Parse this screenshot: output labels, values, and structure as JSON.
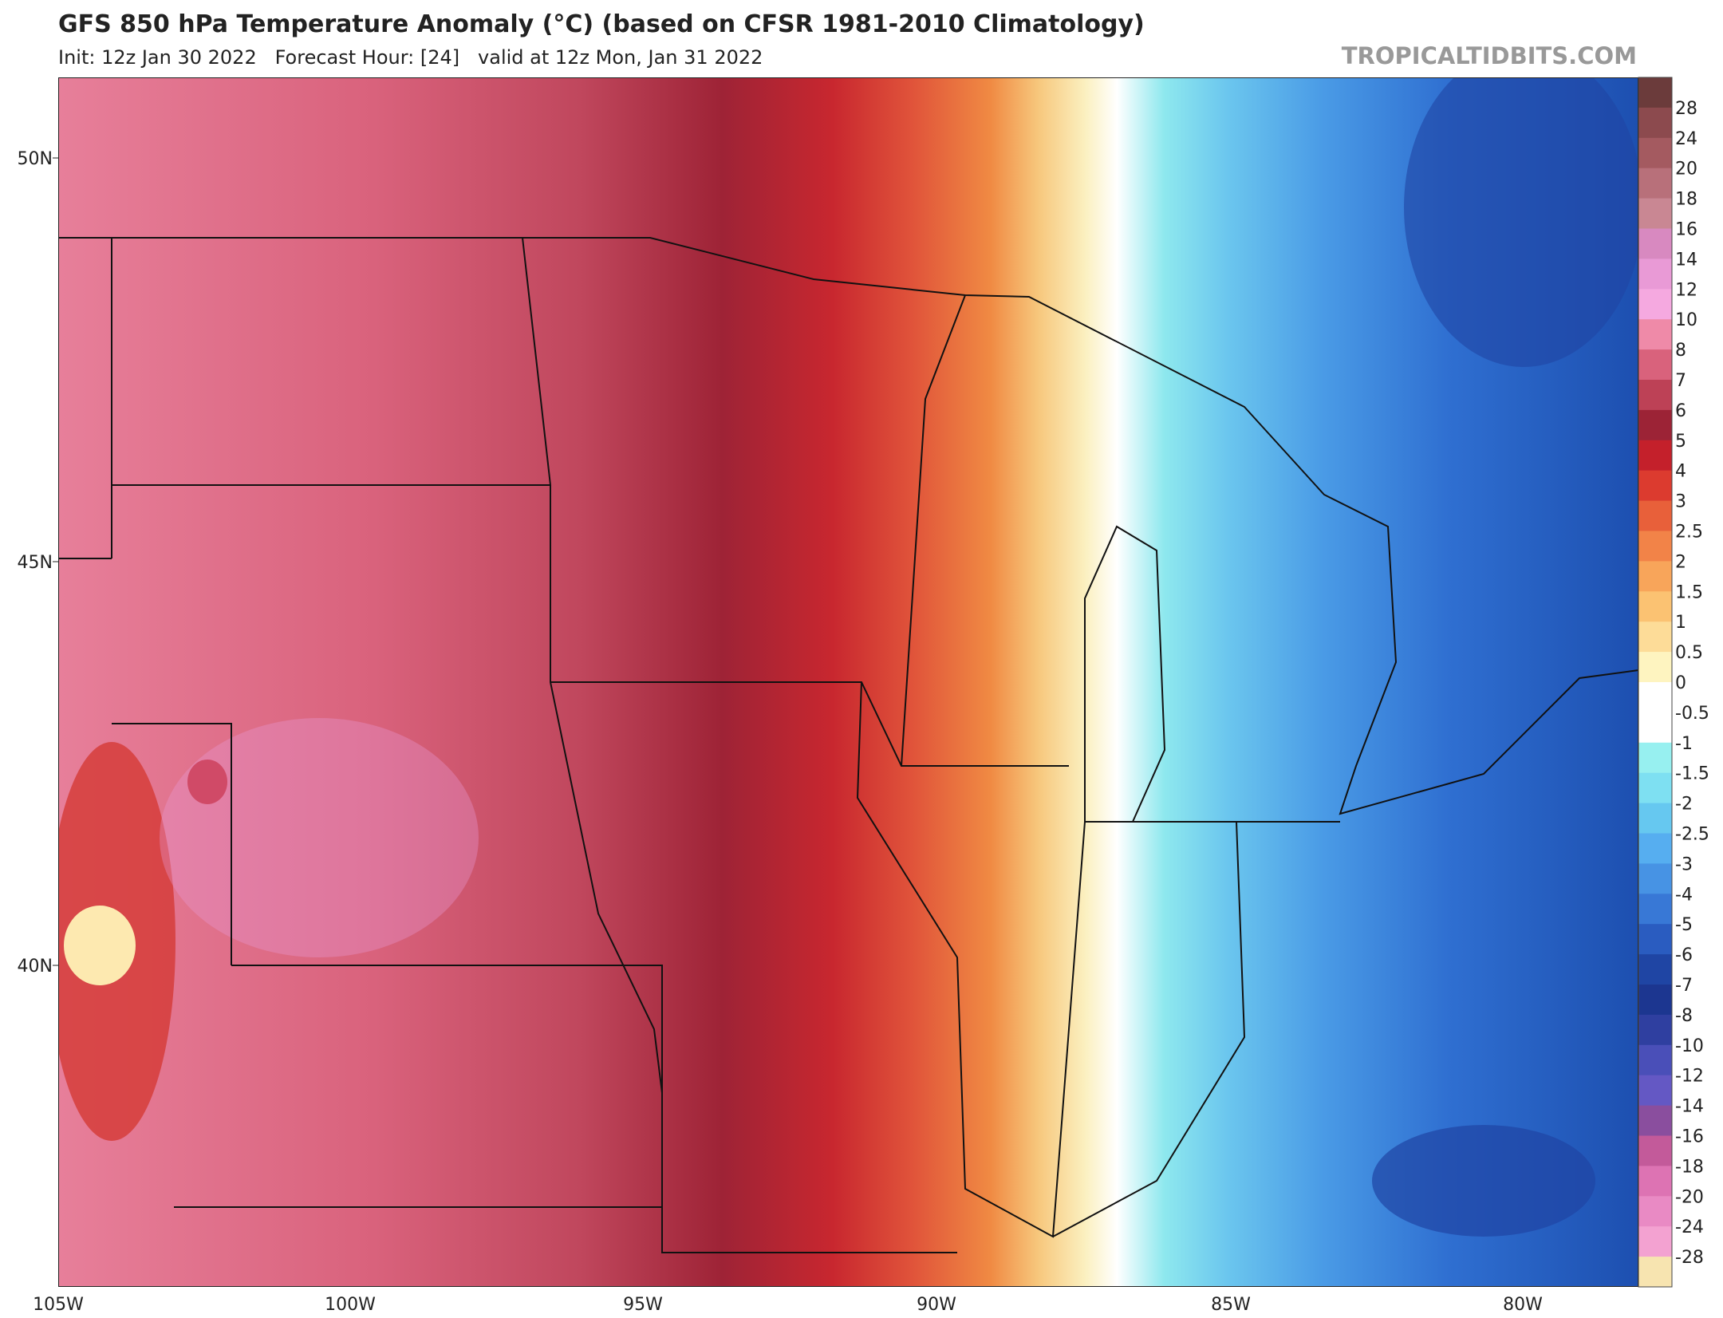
{
  "header": {
    "title": "GFS 850 hPa Temperature Anomaly (°C) (based on CFSR 1981-2010 Climatology)",
    "subtitle": "Init: 12z Jan 30 2022   Forecast Hour: [24]   valid at 12z Mon, Jan 31 2022",
    "watermark": "TROPICALTIDBITS.COM"
  },
  "map": {
    "lat_labels": [
      "50N",
      "45N",
      "40N"
    ],
    "lon_labels": [
      "105W",
      "100W",
      "95W",
      "90W",
      "85W",
      "80W"
    ]
  },
  "legend": {
    "labels": [
      "28",
      "24",
      "20",
      "18",
      "16",
      "14",
      "12",
      "10",
      "8",
      "7",
      "6",
      "5",
      "4",
      "3",
      "2.5",
      "2",
      "1.5",
      "1",
      "0.5",
      "0",
      "-0.5",
      "-1",
      "-1.5",
      "-2",
      "-2.5",
      "-3",
      "-4",
      "-5",
      "-6",
      "-7",
      "-8",
      "-10",
      "-12",
      "-14",
      "-16",
      "-18",
      "-20",
      "-24",
      "-28"
    ],
    "colors": [
      "#6b3b3b",
      "#8c4a4e",
      "#a45a60",
      "#b8707a",
      "#c98793",
      "#d889c0",
      "#e99ad6",
      "#f5a9e0",
      "#ef8aa8",
      "#d9627c",
      "#bd4156",
      "#9c2336",
      "#c4202b",
      "#dc3b2f",
      "#e8603a",
      "#f28348",
      "#f8a55a",
      "#fbc272",
      "#fddc98",
      "#fef4c0",
      "#ffffff",
      "#ffffff",
      "#97f0f0",
      "#7ee0f2",
      "#66c8f0",
      "#56aef0",
      "#4793e4",
      "#3878d6",
      "#2a5cc0",
      "#1f45a4",
      "#1c3690",
      "#2f3fa0",
      "#4a4fb8",
      "#6458c4",
      "#8a4e9e",
      "#c35a9a",
      "#dd73b3",
      "#e98ac4",
      "#f3a2d1",
      "#f7e4b0"
    ]
  }
}
